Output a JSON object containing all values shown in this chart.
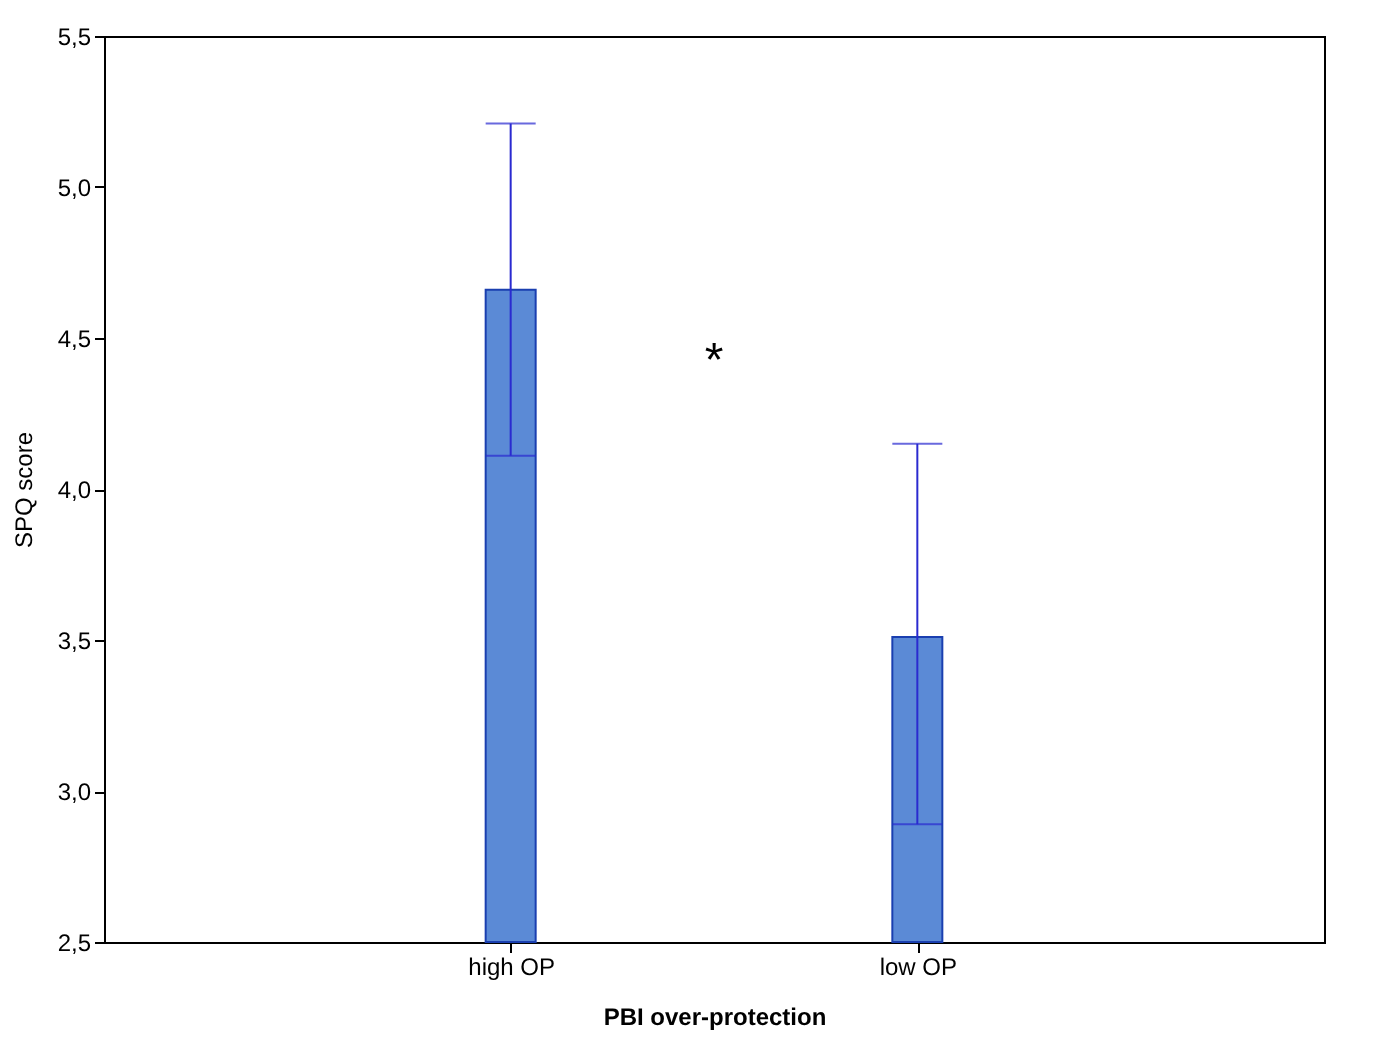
{
  "chart_data": {
    "type": "bar",
    "xlabel": "PBI over-protection",
    "ylabel": "SPQ score",
    "categories": [
      "high OP",
      "low OP"
    ],
    "series": [
      {
        "color": "#5b8ad6",
        "values": [
          4.66,
          3.51
        ],
        "errors": [
          [
            4.11,
            5.21
          ],
          [
            2.89,
            4.15
          ]
        ]
      }
    ],
    "ylim": [
      2.5,
      5.5
    ],
    "yticks": [
      {
        "value": 2.5,
        "label": "2,5"
      },
      {
        "value": 3.0,
        "label": "3,0"
      },
      {
        "value": 3.5,
        "label": "3,5"
      },
      {
        "value": 4.0,
        "label": "4,0"
      },
      {
        "value": 4.5,
        "label": "4,5"
      },
      {
        "value": 5.0,
        "label": "5,0"
      },
      {
        "value": 5.5,
        "label": "5,5"
      }
    ],
    "annotations": [
      "*"
    ],
    "grid": false
  }
}
